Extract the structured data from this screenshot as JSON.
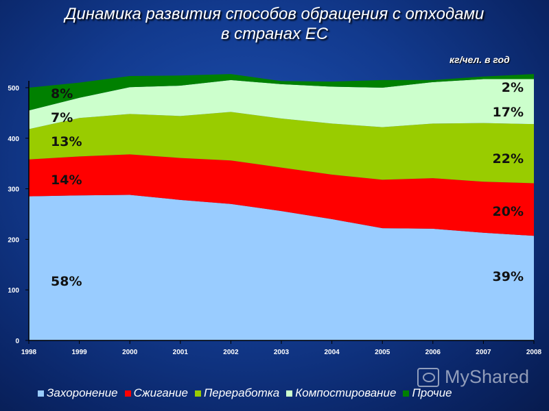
{
  "title_line1": "Динамика развития способов обращения с отходами",
  "title_line2": "в странах ЕС",
  "unit_label": "кг/чел. в год",
  "watermark": "MyShared",
  "chart_data": {
    "type": "area",
    "stacked": true,
    "title": "Динамика развития способов обращения с отходами в странах ЕС",
    "ylabel": "кг/чел. в год",
    "x": [
      "1998",
      "1999",
      "2000",
      "2001",
      "2002",
      "2003",
      "2004",
      "2005",
      "2006",
      "2007",
      "2008"
    ],
    "ylim": [
      0,
      500
    ],
    "yticks": [
      0,
      100,
      200,
      300,
      400,
      500
    ],
    "grid": false,
    "legend_position": "bottom",
    "series": [
      {
        "name": "Захоронение",
        "color": "#99ccff",
        "values": [
          285,
          287,
          288,
          278,
          270,
          256,
          240,
          222,
          221,
          213,
          207
        ]
      },
      {
        "name": "Сжигание",
        "color": "#ff0000",
        "values": [
          73,
          77,
          80,
          83,
          86,
          86,
          88,
          96,
          100,
          101,
          104
        ]
      },
      {
        "name": "Переработка",
        "color": "#99cc00",
        "values": [
          60,
          76,
          80,
          83,
          96,
          97,
          101,
          104,
          108,
          116,
          117
        ]
      },
      {
        "name": "Компостирование",
        "color": "#ccffcc",
        "values": [
          37,
          40,
          53,
          60,
          63,
          68,
          73,
          78,
          82,
          87,
          89
        ]
      },
      {
        "name": "Прочие",
        "color": "#008000",
        "values": [
          45,
          30,
          22,
          20,
          12,
          6,
          10,
          15,
          4,
          5,
          10
        ]
      }
    ],
    "annotations": {
      "1998": [
        "58%",
        "14%",
        "13%",
        "7%",
        "8%"
      ],
      "2008": [
        "39%",
        "20%",
        "22%",
        "17%",
        "2%"
      ]
    }
  }
}
